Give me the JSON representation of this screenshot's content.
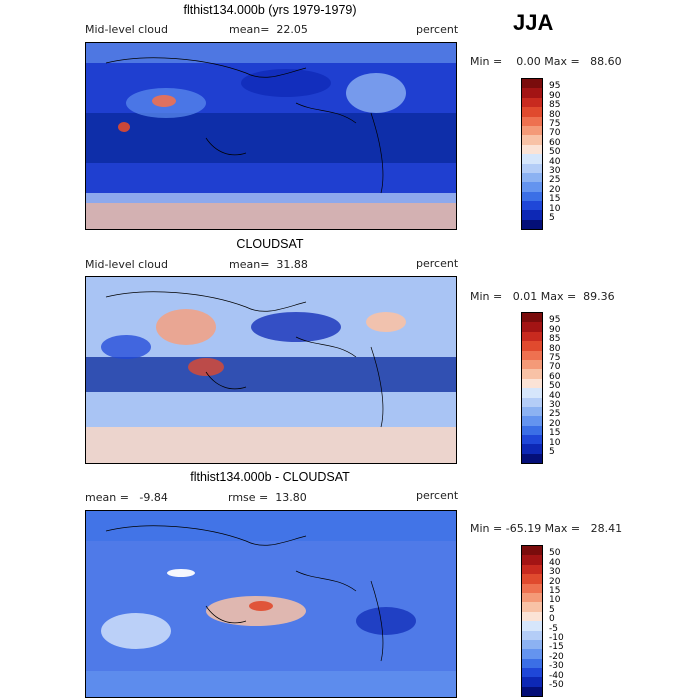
{
  "season": "JJA",
  "panels": [
    {
      "title": "flthist134.000b (yrs 1979-1979)",
      "left_label": "Mid-level cloud",
      "center_label": "mean=  22.05",
      "right_label": "percent",
      "minmax": "Min =    0.00 Max =   88.60",
      "colorbar": {
        "levels": [
          "95",
          "90",
          "85",
          "80",
          "75",
          "70",
          "60",
          "50",
          "40",
          "30",
          "25",
          "20",
          "15",
          "10",
          "5"
        ],
        "colors": [
          "#7a0c0c",
          "#a31414",
          "#c82a1f",
          "#e04a2e",
          "#ee7150",
          "#f49a78",
          "#f8c2a6",
          "#fbe3d6",
          "#d6e6fb",
          "#b4cdf7",
          "#8cb2f2",
          "#6494ef",
          "#3b6fe6",
          "#1f47d8",
          "#0d28b5",
          "#040f78"
        ]
      },
      "fill": "#1f3fd0"
    },
    {
      "title": "CLOUDSAT",
      "left_label": "Mid-level cloud",
      "center_label": "mean=  31.88",
      "right_label": "percent",
      "minmax": "Min =   0.01 Max =  89.36",
      "colorbar": {
        "levels": [
          "95",
          "90",
          "85",
          "80",
          "75",
          "70",
          "60",
          "50",
          "40",
          "30",
          "25",
          "20",
          "15",
          "10",
          "5"
        ],
        "colors": [
          "#7a0c0c",
          "#a31414",
          "#c82a1f",
          "#e04a2e",
          "#ee7150",
          "#f49a78",
          "#f8c2a6",
          "#fbe3d6",
          "#d6e6fb",
          "#b4cdf7",
          "#8cb2f2",
          "#6494ef",
          "#3b6fe6",
          "#1f47d8",
          "#0d28b5",
          "#040f78"
        ]
      },
      "fill": "#a9c4f4"
    },
    {
      "title": "flthist134.000b - CLOUDSAT",
      "left_label": "mean =   -9.84",
      "center_label": "rmse =  13.80",
      "right_label": "percent",
      "minmax": "Min = -65.19 Max =   28.41",
      "colorbar": {
        "levels": [
          "50",
          "40",
          "30",
          "20",
          "15",
          "10",
          "5",
          "0",
          "-5",
          "-10",
          "-15",
          "-20",
          "-30",
          "-40",
          "-50"
        ],
        "colors": [
          "#7a0c0c",
          "#a31414",
          "#c82a1f",
          "#e04a2e",
          "#ee7150",
          "#f49a78",
          "#f8c2a6",
          "#fbe3d6",
          "#d6e6fb",
          "#b4cdf7",
          "#8cb2f2",
          "#6494ef",
          "#3b6fe6",
          "#1f47d8",
          "#0d28b5",
          "#040f78"
        ]
      },
      "fill": "#4f7ae8"
    }
  ]
}
